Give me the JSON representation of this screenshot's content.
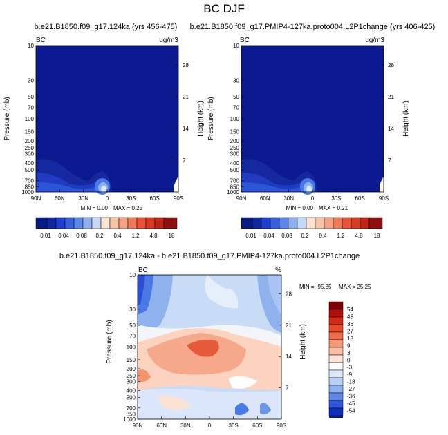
{
  "figure": {
    "title": "BC DJF"
  },
  "colors": {
    "navy": "#0b1b8f",
    "mid_blue": "#2a4fd6",
    "light_blue": "#7fa6ec",
    "pale_blue": "#c9dcf6",
    "white": "#ffffff",
    "pale_red": "#fbd3bf",
    "red": "#e65a3c",
    "dark_red": "#9a1010"
  },
  "chart_data": [
    {
      "type": "heatmap",
      "title": "b.e21.B1850.f09_g17.124ka (yrs 456-475)",
      "left_label": "BC",
      "right_label": "ug/m3",
      "ylabel": "Pressure (mb)",
      "y2label": "Height (km)",
      "yticks": [
        "10",
        "30",
        "50",
        "70",
        "100",
        "150",
        "200",
        "250",
        "300",
        "400",
        "500",
        "700",
        "850",
        "1000"
      ],
      "y2ticks": [
        "28",
        "21",
        "14",
        "7"
      ],
      "xticks": [
        "90N",
        "60N",
        "30N",
        "0",
        "30S",
        "60S",
        "90S"
      ],
      "xlim": [
        90,
        -90
      ],
      "min_label": "MIN =   0.00",
      "max_label": "MAX =   0.25",
      "colorbar": {
        "levels": [
          "0.01",
          "0.04",
          "0.08",
          "0.2",
          "0.4",
          "1.2",
          "4.8",
          "18"
        ]
      }
    },
    {
      "type": "heatmap",
      "title": "b.e21.B1850.f09_g17.PMIP4-127ka.proto004.L2P1change (yrs 406-425)",
      "left_label": "BC",
      "right_label": "ug/m3",
      "ylabel": "Pressure (mb)",
      "y2label": "Height (km)",
      "yticks": [
        "10",
        "30",
        "50",
        "70",
        "100",
        "150",
        "200",
        "250",
        "300",
        "400",
        "500",
        "700",
        "850",
        "1000"
      ],
      "y2ticks": [
        "28",
        "21",
        "14",
        "7"
      ],
      "xticks": [
        "90N",
        "60N",
        "30N",
        "0",
        "30S",
        "60S",
        "90S"
      ],
      "xlim": [
        90,
        -90
      ],
      "min_label": "MIN =   0.00",
      "max_label": "MAX =   0.21",
      "colorbar": {
        "levels": [
          "0.01",
          "0.04",
          "0.08",
          "0.2",
          "0.4",
          "1.2",
          "4.8",
          "18"
        ]
      }
    },
    {
      "type": "heatmap",
      "title": "b.e21.B1850.f09_g17.124ka - b.e21.B1850.f09_g17.PMIP4-127ka.proto004.L2P1change",
      "left_label": "BC",
      "right_label": "%",
      "ylabel": "Pressure (mb)",
      "y2label": "Height (km)",
      "yticks": [
        "10",
        "30",
        "50",
        "70",
        "100",
        "150",
        "200",
        "250",
        "300",
        "400",
        "500",
        "700",
        "850",
        "1000"
      ],
      "y2ticks": [
        "28",
        "21",
        "14",
        "7"
      ],
      "xticks": [
        "90N",
        "60N",
        "30N",
        "0",
        "30S",
        "60S",
        "90S"
      ],
      "xlim": [
        90,
        -90
      ],
      "min_label": "MIN = -95.35",
      "max_label": "MAX =  25.25",
      "colorbar": {
        "levels": [
          "54",
          "45",
          "36",
          "27",
          "18",
          "9",
          "3",
          "0",
          "-3",
          "-9",
          "-18",
          "-27",
          "-36",
          "-45",
          "-54"
        ]
      }
    }
  ]
}
